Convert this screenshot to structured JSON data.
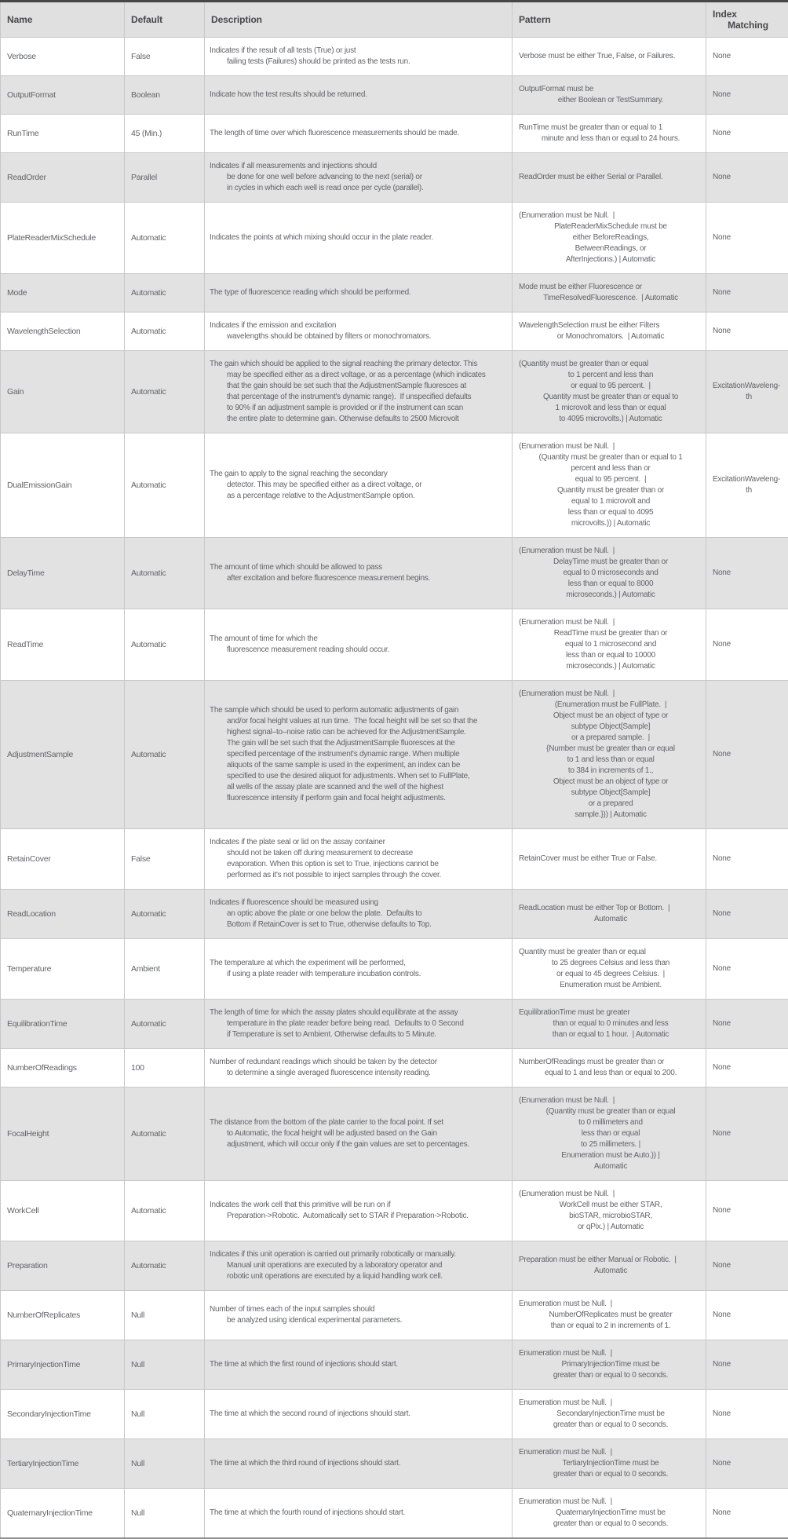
{
  "table": {
    "headers": {
      "name": "Name",
      "default": "Default",
      "description": "Description",
      "pattern": "Pattern",
      "index_matching": [
        "Index",
        "Matching"
      ]
    },
    "rows": [
      {
        "name": "Verbose",
        "default": "False",
        "description": [
          "Indicates if the result of all tests (True) or just",
          "failing tests (Failures) should be printed as the tests run."
        ],
        "pattern": [
          "Verbose must be either True, False, or Failures."
        ],
        "index": [
          "None"
        ]
      },
      {
        "name": "OutputFormat",
        "default": "Boolean",
        "description": [
          "Indicate how the test results should be returned."
        ],
        "pattern": [
          "OutputFormat must be",
          "either Boolean or TestSummary."
        ],
        "index": [
          "None"
        ]
      },
      {
        "name": "RunTime",
        "default": "45 (Min.)",
        "description": [
          "The length of time over which fluorescence measurements should be made."
        ],
        "pattern": [
          "RunTime must be greater than or equal to 1",
          "minute and less than or equal to 24 hours."
        ],
        "index": [
          "None"
        ]
      },
      {
        "name": "ReadOrder",
        "default": "Parallel",
        "description": [
          "Indicates if all measurements and injections should",
          "be done for one well before advancing to the next (serial) or",
          "in cycles in which each well is read once per cycle (parallel)."
        ],
        "pattern": [
          "ReadOrder must be either Serial or Parallel."
        ],
        "index": [
          "None"
        ]
      },
      {
        "name": "PlateReaderMixSchedule",
        "default": "Automatic",
        "description": [
          "Indicates the points at which mixing should occur in the plate reader."
        ],
        "pattern": [
          "(Enumeration must be Null.  |",
          "PlateReaderMixSchedule must be",
          "either BeforeReadings,",
          "BetweenReadings, or",
          "AfterInjections.) | Automatic"
        ],
        "index": [
          "None"
        ]
      },
      {
        "name": "Mode",
        "default": "Automatic",
        "description": [
          "The type of fluorescence reading which should be performed."
        ],
        "pattern": [
          "Mode must be either Fluorescence or",
          "TimeResolvedFluorescence.  | Automatic"
        ],
        "index": [
          "None"
        ]
      },
      {
        "name": "WavelengthSelection",
        "default": "Automatic",
        "description": [
          "Indicates if the emission and excitation",
          "wavelengths should be obtained by filters or monochromators."
        ],
        "pattern": [
          "WavelengthSelection must be either Filters",
          "or Monochromators.  | Automatic"
        ],
        "index": [
          "None"
        ]
      },
      {
        "name": "Gain",
        "default": "Automatic",
        "description": [
          "The gain which should be applied to the signal reaching the primary detector. This",
          "may be specified either as a direct voltage, or as a percentage (which indicates",
          "that the gain should be set such that the AdjustmentSample fluoresces at",
          "that percentage of the instrument's dynamic range).  If unspecified defaults",
          "to 90% if an adjustment sample is provided or if the instrument can scan",
          "the entire plate to determine gain. Otherwise defaults to 2500 Microvolt"
        ],
        "pattern": [
          "(Quantity must be greater than or equal",
          "to 1 percent and less than",
          "or equal to 95 percent.  |",
          "Quantity must be greater than or equal to",
          "1 microvolt and less than or equal",
          "to 4095 microvolts.) | Automatic"
        ],
        "index": [
          "ExcitationWaveleng-",
          "th"
        ]
      },
      {
        "name": "DualEmissionGain",
        "default": "Automatic",
        "description": [
          "The gain to apply to the signal reaching the secondary",
          "detector. This may be specified either as a direct voltage, or",
          "as a percentage relative to the AdjustmentSample option."
        ],
        "pattern": [
          "(Enumeration must be Null.  |",
          "(Quantity must be greater than or equal to 1",
          "percent and less than or",
          "equal to 95 percent.  |",
          "Quantity must be greater than or",
          "equal to 1 microvolt and",
          "less than or equal to 4095",
          "microvolts.)) | Automatic"
        ],
        "index": [
          "ExcitationWaveleng-",
          "th"
        ]
      },
      {
        "name": "DelayTime",
        "default": "Automatic",
        "description": [
          "The amount of time which should be allowed to pass",
          "after excitation and before fluorescence measurement begins."
        ],
        "pattern": [
          "(Enumeration must be Null.  |",
          "DelayTime must be greater than or",
          "equal to 0 microseconds and",
          "less than or equal to 8000",
          "microseconds.) | Automatic"
        ],
        "index": [
          "None"
        ]
      },
      {
        "name": "ReadTime",
        "default": "Automatic",
        "description": [
          "The amount of time for which the",
          "fluorescence measurement reading should occur."
        ],
        "pattern": [
          "(Enumeration must be Null.  |",
          "ReadTime must be greater than or",
          "equal to 1 microsecond and",
          "less than or equal to 10000",
          "microseconds.) | Automatic"
        ],
        "index": [
          "None"
        ]
      },
      {
        "name": "AdjustmentSample",
        "default": "Automatic",
        "description": [
          "The sample which should be used to perform automatic adjustments of gain",
          "and/or focal height values at run time.  The focal height will be set so that the",
          "highest signal–to–noise ratio can be achieved for the AdjustmentSample.",
          "The gain will be set such that the AdjustmentSample fluoresces at the",
          "specified percentage of the instrument's dynamic range. When multiple",
          "aliquots of the same sample is used in the experiment, an index can be",
          "specified to use the desired aliquot for adjustments. When set to FullPlate,",
          "all wells of the assay plate are scanned and the well of the highest",
          "fluorescence intensity if perform gain and focal height adjustments."
        ],
        "pattern": [
          "(Enumeration must be Null.  |",
          "(Enumeration must be FullPlate.  |",
          "Object must be an object of type or",
          "subtype Object[Sample]",
          "or a prepared sample.  |",
          "{Number must be greater than or equal",
          "to 1 and less than or equal",
          "to 384 in increments of 1.,",
          "Object must be an object of type or",
          "subtype Object[Sample]",
          "or a prepared",
          "sample.})) | Automatic"
        ],
        "index": [
          "None"
        ]
      },
      {
        "name": "RetainCover",
        "default": "False",
        "description": [
          "Indicates if the plate seal or lid on the assay container",
          "should not be taken off during measurement to decrease",
          "evaporation. When this option is set to True, injections cannot be",
          "performed as it's not possible to inject samples through the cover."
        ],
        "pattern": [
          "RetainCover must be either True or False."
        ],
        "index": [
          "None"
        ]
      },
      {
        "name": "ReadLocation",
        "default": "Automatic",
        "description": [
          "Indicates if fluorescence should be measured using",
          "an optic above the plate or one below the plate.  Defaults to",
          "Bottom if RetainCover is set to True, otherwise defaults to Top."
        ],
        "pattern": [
          "ReadLocation must be either Top or Bottom.  |",
          "Automatic"
        ],
        "index": [
          "None"
        ]
      },
      {
        "name": "Temperature",
        "default": "Ambient",
        "description": [
          "The temperature at which the experiment will be performed,",
          "if using a plate reader with temperature incubation controls."
        ],
        "pattern": [
          "Quantity must be greater than or equal",
          "to 25 degrees Celsius and less than",
          "or equal to 45 degrees Celsius.  |",
          "Enumeration must be Ambient."
        ],
        "index": [
          "None"
        ]
      },
      {
        "name": "EquilibrationTime",
        "default": "Automatic",
        "description": [
          "The length of time for which the assay plates should equilibrate at the assay",
          "temperature in the plate reader before being read.  Defaults to 0 Second",
          "if Temperature is set to Ambient. Otherwise defaults to 5 Minute."
        ],
        "pattern": [
          "EquilibrationTime must be greater",
          "than or equal to 0 minutes and less",
          "than or equal to 1 hour.  | Automatic"
        ],
        "index": [
          "None"
        ]
      },
      {
        "name": "NumberOfReadings",
        "default": "100",
        "description": [
          "Number of redundant readings which should be taken by the detector",
          "to determine a single averaged fluorescence intensity reading."
        ],
        "pattern": [
          "NumberOfReadings must be greater than or",
          "equal to 1 and less than or equal to 200."
        ],
        "index": [
          "None"
        ]
      },
      {
        "name": "FocalHeight",
        "default": "Automatic",
        "description": [
          "The distance from the bottom of the plate carrier to the focal point. If set",
          "to Automatic, the focal height will be adjusted based on the Gain",
          "adjustment, which will occur only if the gain values are set to percentages."
        ],
        "pattern": [
          "(Enumeration must be Null.  |",
          "(Quantity must be greater than or equal",
          "to 0 millimeters and",
          "less than or equal",
          "to 25 millimeters. |",
          "Enumeration must be Auto.)) |",
          "Automatic"
        ],
        "index": [
          "None"
        ]
      },
      {
        "name": "WorkCell",
        "default": "Automatic",
        "description": [
          "Indicates the work cell that this primitive will be run on if",
          "Preparation->Robotic.  Automatically set to STAR if Preparation->Robotic."
        ],
        "pattern": [
          "(Enumeration must be Null.  |",
          "WorkCell must be either STAR,",
          "bioSTAR, microbioSTAR,",
          "or qPix.) | Automatic"
        ],
        "index": [
          "None"
        ]
      },
      {
        "name": "Preparation",
        "default": "Automatic",
        "description": [
          "Indicates if this unit operation is carried out primarily robotically or manually.",
          "Manual unit operations are executed by a laboratory operator and",
          "robotic unit operations are executed by a liquid handling work cell."
        ],
        "pattern": [
          "Preparation must be either Manual or Robotic.  |",
          "Automatic"
        ],
        "index": [
          "None"
        ]
      },
      {
        "name": "NumberOfReplicates",
        "default": "Null",
        "description": [
          "Number of times each of the input samples should",
          "be analyzed using identical experimental parameters."
        ],
        "pattern": [
          "Enumeration must be Null.  |",
          "NumberOfReplicates must be greater",
          "than or equal to 2 in increments of 1."
        ],
        "index": [
          "None"
        ]
      },
      {
        "name": "PrimaryInjectionTime",
        "default": "Null",
        "description": [
          "The time at which the first round of injections should start."
        ],
        "pattern": [
          "Enumeration must be Null.  |",
          "PrimaryInjectionTime must be",
          "greater than or equal to 0 seconds."
        ],
        "index": [
          "None"
        ]
      },
      {
        "name": "SecondaryInjectionTime",
        "default": "Null",
        "description": [
          "The time at which the second round of injections should start."
        ],
        "pattern": [
          "Enumeration must be Null.  |",
          "SecondaryInjectionTime must be",
          "greater than or equal to 0 seconds."
        ],
        "index": [
          "None"
        ]
      },
      {
        "name": "TertiaryInjectionTime",
        "default": "Null",
        "description": [
          "The time at which the third round of injections should start."
        ],
        "pattern": [
          "Enumeration must be Null.  |",
          "TertiaryInjectionTime must be",
          "greater than or equal to 0 seconds."
        ],
        "index": [
          "None"
        ]
      },
      {
        "name": "QuaternaryInjectionTime",
        "default": "Null",
        "description": [
          "The time at which the fourth round of injections should start."
        ],
        "pattern": [
          "Enumeration must be Null.  |",
          "QuaternaryInjectionTime must be",
          "greater than or equal to 0 seconds."
        ],
        "index": [
          "None"
        ]
      }
    ]
  },
  "colors": {
    "header_bg": "#e0e0e0",
    "row_alt_bg": "#e2e2e3",
    "row_bg": "#ffffff",
    "grid_line": "#c8c8c8",
    "top_rule": "#474747",
    "bottom_rule": "#8f8f8f",
    "text": "#606468",
    "header_text": "#46484c"
  }
}
